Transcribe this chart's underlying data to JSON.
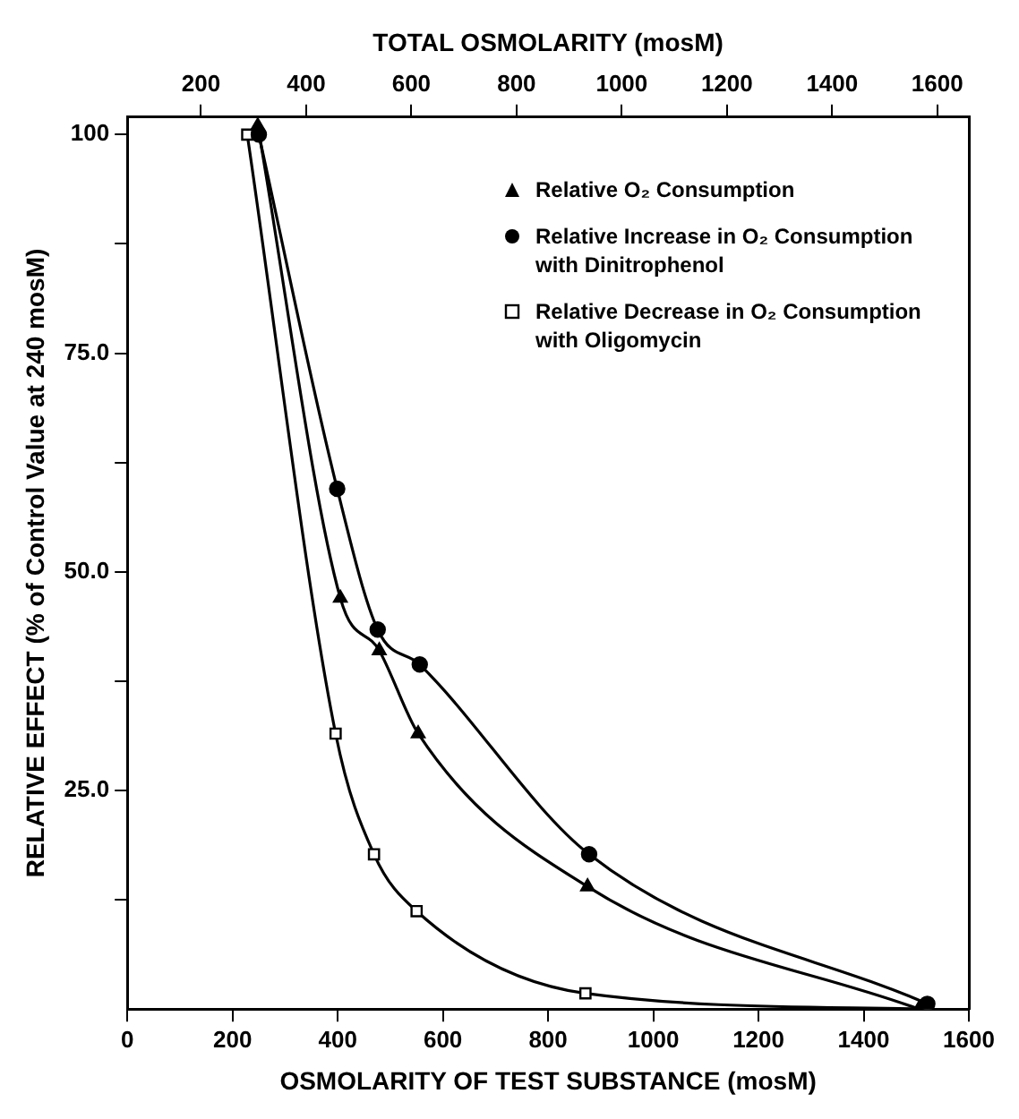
{
  "chart_data": {
    "type": "line",
    "xlabel": "OSMOLARITY OF TEST SUBSTANCE (mosM)",
    "x2label": "TOTAL OSMOLARITY (mosM)",
    "ylabel": "RELATIVE EFFECT (% of Control Value at 240 mosM)",
    "xlim": [
      0,
      1600
    ],
    "xticks": [
      0,
      200,
      400,
      600,
      800,
      1000,
      1200,
      1400,
      1600
    ],
    "x2lim": [
      60,
      1660
    ],
    "x2ticks": [
      200,
      400,
      600,
      800,
      1000,
      1200,
      1400,
      1600
    ],
    "ylim": [
      0,
      102
    ],
    "yticks": [
      {
        "value": 12.5,
        "label": null
      },
      {
        "value": 25,
        "label": "25.0"
      },
      {
        "value": 37.5,
        "label": null
      },
      {
        "value": 50,
        "label": "50.0"
      },
      {
        "value": 62.5,
        "label": null
      },
      {
        "value": 75,
        "label": "75.0"
      },
      {
        "value": 87.5,
        "label": null
      },
      {
        "value": 100,
        "label": "100"
      }
    ],
    "grid": false,
    "legend": "top right",
    "line_style": "solid",
    "series": [
      {
        "name": "Relative O₂ Consumption",
        "color": "#000000",
        "marker": "triangle",
        "x": [
          248,
          405,
          479,
          553,
          875,
          1505
        ],
        "values": [
          101,
          47,
          41,
          31.5,
          14,
          0
        ]
      },
      {
        "name": "Relative Increase in O₂ Consumption with Dinitrophenol",
        "color": "#000000",
        "marker": "circle",
        "x": [
          250,
          399,
          476,
          556,
          878,
          1521
        ],
        "values": [
          100,
          59.5,
          43.4,
          39.4,
          17.7,
          0.6
        ]
      },
      {
        "name": "Relative Decrease in O₂ Consumption with Oligomycin",
        "color": "#000000",
        "marker": "square",
        "x": [
          228,
          396,
          469,
          550,
          871,
          1521
        ],
        "values": [
          100,
          31.5,
          17.7,
          11.2,
          1.8,
          0
        ]
      }
    ]
  }
}
